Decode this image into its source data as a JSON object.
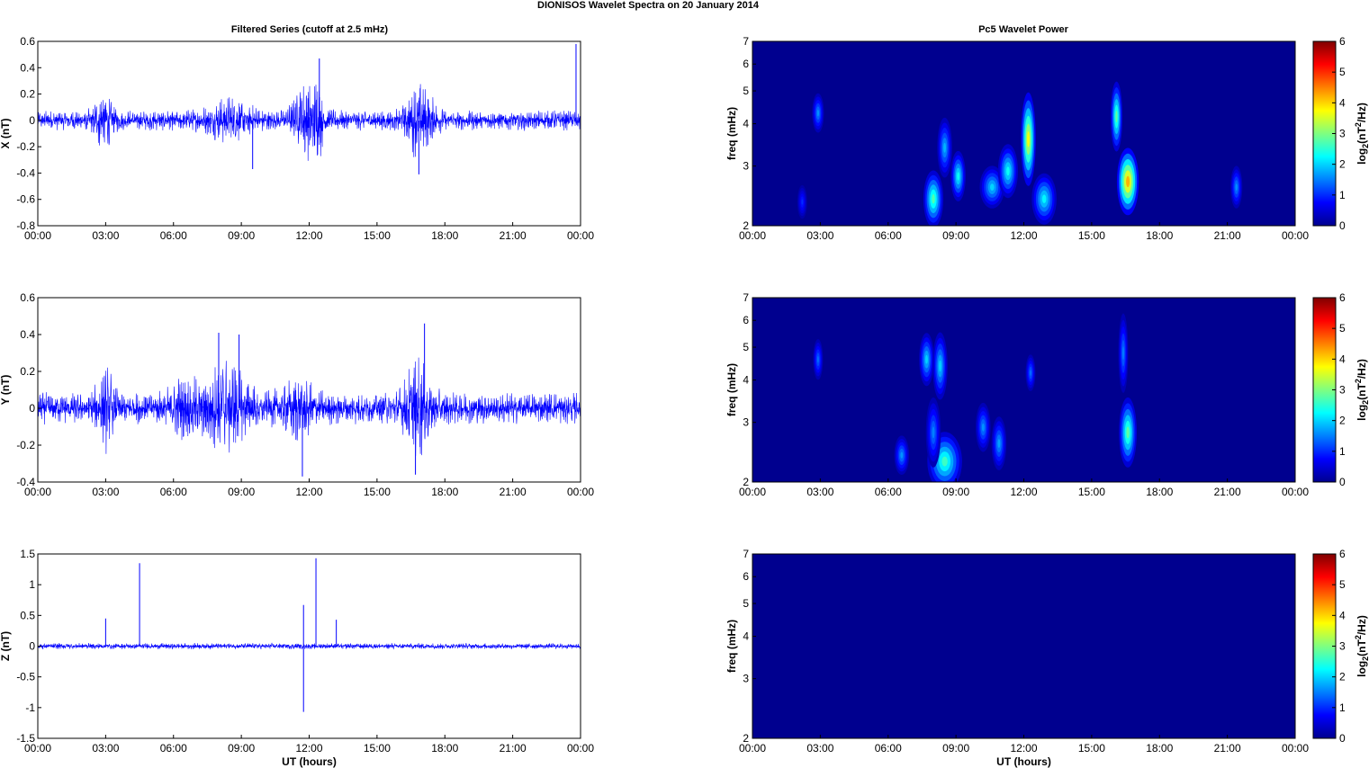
{
  "title": "DIONISOS Wavelet Spectra on 20 January   2014",
  "left_title": "Filtered Series (cutoff at 2.5 mHz)",
  "right_title": "Pc5 Wavelet Power",
  "time_ticks": [
    "00:00",
    "03:00",
    "06:00",
    "09:00",
    "12:00",
    "15:00",
    "18:00",
    "21:00",
    "00:00"
  ],
  "xlabel": "UT (hours)",
  "freq_ylabel": "freq (mHz)",
  "freq_ticks": [
    "2",
    "3",
    "4",
    "5",
    "6",
    "7"
  ],
  "colorbar_label": "log2(nT2/Hz)",
  "colorbar_ticks": [
    "0",
    "1",
    "2",
    "3",
    "4",
    "5",
    "6"
  ],
  "colors": {
    "trace": "#0000ff",
    "map_background": "#00008f"
  },
  "chart_data": [
    {
      "type": "line",
      "id": "x-series",
      "ylabel": "X (nT)",
      "ylim": [
        -0.8,
        0.6
      ],
      "yticks": [
        "0.6",
        "0.4",
        "0.2",
        "0",
        "-0.2",
        "-0.4",
        "-0.6",
        "-0.8"
      ],
      "xlim_hours": [
        0,
        24
      ],
      "baseline_amplitude": 0.08,
      "bursts": [
        {
          "t": 2.9,
          "w": 0.4,
          "a": 0.28
        },
        {
          "t": 8.5,
          "w": 1.0,
          "a": 0.2
        },
        {
          "t": 11.9,
          "w": 0.6,
          "a": 0.33
        },
        {
          "t": 12.3,
          "w": 0.3,
          "a": 0.42
        },
        {
          "t": 16.9,
          "w": 0.6,
          "a": 0.33
        }
      ],
      "spikes": [
        {
          "t": 23.8,
          "v": 0.58
        },
        {
          "t": 12.45,
          "v": 0.47
        },
        {
          "t": 16.85,
          "v": -0.41
        },
        {
          "t": 9.5,
          "v": -0.37
        }
      ]
    },
    {
      "type": "line",
      "id": "y-series",
      "ylabel": "Y (nT)",
      "ylim": [
        -0.4,
        0.6
      ],
      "yticks": [
        "0.6",
        "0.4",
        "0.2",
        "0",
        "-0.2",
        "-0.4"
      ],
      "xlim_hours": [
        0,
        24
      ],
      "baseline_amplitude": 0.09,
      "bursts": [
        {
          "t": 3.0,
          "w": 0.4,
          "a": 0.25
        },
        {
          "t": 6.6,
          "w": 0.8,
          "a": 0.2
        },
        {
          "t": 8.3,
          "w": 1.0,
          "a": 0.3
        },
        {
          "t": 11.5,
          "w": 0.8,
          "a": 0.2
        },
        {
          "t": 16.8,
          "w": 0.6,
          "a": 0.3
        }
      ],
      "spikes": [
        {
          "t": 8.0,
          "v": 0.41
        },
        {
          "t": 8.9,
          "v": 0.4
        },
        {
          "t": 17.1,
          "v": 0.46
        },
        {
          "t": 16.7,
          "v": -0.36
        },
        {
          "t": 11.7,
          "v": -0.37
        }
      ]
    },
    {
      "type": "line",
      "id": "z-series",
      "ylabel": "Z (nT)",
      "ylim": [
        -1.5,
        1.5
      ],
      "yticks": [
        "1.5",
        "1",
        "0.5",
        "0",
        "-0.5",
        "-1",
        "-1.5"
      ],
      "xlim_hours": [
        0,
        24
      ],
      "baseline_amplitude": 0.05,
      "bursts": [],
      "spikes": [
        {
          "t": 4.5,
          "v": 1.35
        },
        {
          "t": 12.3,
          "v": 1.43
        },
        {
          "t": 11.75,
          "v": 0.67
        },
        {
          "t": 11.75,
          "v": -1.07
        },
        {
          "t": 3.0,
          "v": 0.45
        },
        {
          "t": 13.2,
          "v": 0.43
        }
      ]
    },
    {
      "type": "heatmap",
      "id": "x-wavelet",
      "ylabel": "freq (mHz)",
      "ylim": [
        2,
        7
      ],
      "clim": [
        0,
        6
      ],
      "blobs": [
        {
          "t": 2.9,
          "f": 4.3,
          "wt": 0.12,
          "wf": 0.45,
          "v": 1.6
        },
        {
          "t": 2.2,
          "f": 2.35,
          "wt": 0.1,
          "wf": 0.2,
          "v": 1.0
        },
        {
          "t": 8.0,
          "f": 2.4,
          "wt": 0.2,
          "wf": 0.4,
          "v": 2.7
        },
        {
          "t": 8.5,
          "f": 3.4,
          "wt": 0.15,
          "wf": 0.6,
          "v": 1.8
        },
        {
          "t": 9.1,
          "f": 2.8,
          "wt": 0.15,
          "wf": 0.4,
          "v": 2.3
        },
        {
          "t": 10.6,
          "f": 2.6,
          "wt": 0.25,
          "wf": 0.3,
          "v": 2.0
        },
        {
          "t": 11.3,
          "f": 2.9,
          "wt": 0.2,
          "wf": 0.45,
          "v": 2.3
        },
        {
          "t": 12.2,
          "f": 3.6,
          "wt": 0.15,
          "wf": 1.1,
          "v": 3.7
        },
        {
          "t": 12.9,
          "f": 2.4,
          "wt": 0.25,
          "wf": 0.35,
          "v": 2.2
        },
        {
          "t": 16.1,
          "f": 4.2,
          "wt": 0.12,
          "wf": 0.9,
          "v": 2.8
        },
        {
          "t": 16.6,
          "f": 2.7,
          "wt": 0.22,
          "wf": 0.55,
          "v": 4.2
        },
        {
          "t": 21.4,
          "f": 2.6,
          "wt": 0.12,
          "wf": 0.3,
          "v": 1.6
        }
      ]
    },
    {
      "type": "heatmap",
      "id": "y-wavelet",
      "ylabel": "freq (mHz)",
      "ylim": [
        2,
        7
      ],
      "clim": [
        0,
        6
      ],
      "blobs": [
        {
          "t": 2.9,
          "f": 4.6,
          "wt": 0.1,
          "wf": 0.5,
          "v": 1.4
        },
        {
          "t": 6.6,
          "f": 2.4,
          "wt": 0.15,
          "wf": 0.25,
          "v": 1.6
        },
        {
          "t": 7.7,
          "f": 4.6,
          "wt": 0.15,
          "wf": 0.7,
          "v": 2.0
        },
        {
          "t": 8.3,
          "f": 4.4,
          "wt": 0.15,
          "wf": 0.9,
          "v": 2.0
        },
        {
          "t": 8.5,
          "f": 2.3,
          "wt": 0.35,
          "wf": 0.4,
          "v": 2.6
        },
        {
          "t": 8.0,
          "f": 2.8,
          "wt": 0.15,
          "wf": 0.6,
          "v": 1.5
        },
        {
          "t": 10.2,
          "f": 2.9,
          "wt": 0.15,
          "wf": 0.4,
          "v": 1.6
        },
        {
          "t": 10.9,
          "f": 2.6,
          "wt": 0.15,
          "wf": 0.4,
          "v": 1.7
        },
        {
          "t": 12.3,
          "f": 4.2,
          "wt": 0.1,
          "wf": 0.4,
          "v": 1.4
        },
        {
          "t": 16.4,
          "f": 4.8,
          "wt": 0.1,
          "wf": 1.2,
          "v": 1.5
        },
        {
          "t": 16.6,
          "f": 2.8,
          "wt": 0.18,
          "wf": 0.6,
          "v": 2.8
        }
      ]
    },
    {
      "type": "heatmap",
      "id": "z-wavelet",
      "ylabel": "freq (mHz)",
      "ylim": [
        2,
        7
      ],
      "clim": [
        0,
        6
      ],
      "blobs": []
    }
  ]
}
